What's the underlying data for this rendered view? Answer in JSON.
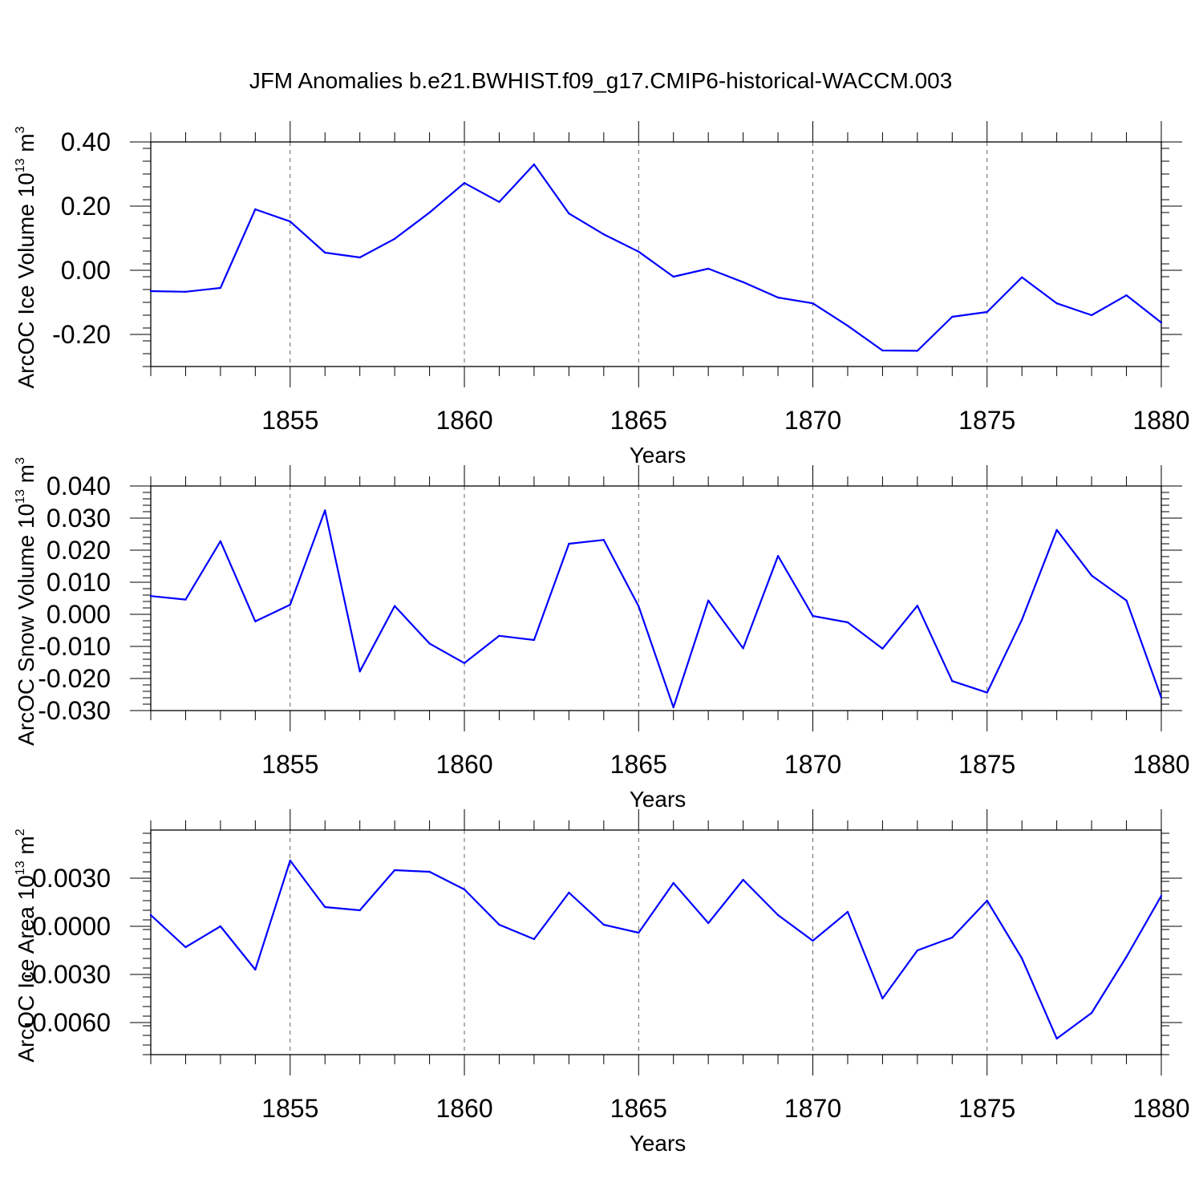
{
  "figure": {
    "title": "JFM Anomalies b.e21.BWHIST.f09_g17.CMIP6-historical-WACCM.003"
  },
  "chart_data": [
    {
      "type": "line",
      "xlabel": "Years",
      "ylabel_main": "ArcOC Ice Volume 10",
      "ylabel_exp": "13",
      "ylabel_unit": " m",
      "ylabel_unit_exp": "3",
      "xlim": [
        1851,
        1880
      ],
      "ylim": [
        -0.3,
        0.4
      ],
      "xticks": [
        1855,
        1860,
        1865,
        1870,
        1875,
        1880
      ],
      "xtick_labels": [
        "1855",
        "1860",
        "1865",
        "1870",
        "1875",
        "1880"
      ],
      "yticks": [
        -0.2,
        0.0,
        0.2,
        0.4
      ],
      "ytick_labels": [
        "-0.20",
        "0.00",
        "0.20",
        "0.40"
      ],
      "yminor": 0.04,
      "grid": "vertical dashed at major x ticks",
      "line_color": "#0000ff",
      "x": [
        1851,
        1852,
        1853,
        1854,
        1855,
        1856,
        1857,
        1858,
        1859,
        1860,
        1861,
        1862,
        1863,
        1864,
        1865,
        1866,
        1867,
        1868,
        1869,
        1870,
        1871,
        1872,
        1873,
        1874,
        1875,
        1876,
        1877,
        1878,
        1879,
        1880
      ],
      "values": [
        -0.065,
        -0.067,
        -0.055,
        0.19,
        0.152,
        0.055,
        0.04,
        0.098,
        0.18,
        0.272,
        0.213,
        0.33,
        0.177,
        0.112,
        0.058,
        -0.02,
        0.005,
        -0.037,
        -0.085,
        -0.103,
        -0.173,
        -0.25,
        -0.251,
        -0.145,
        -0.13,
        -0.022,
        -0.103,
        -0.14,
        -0.078,
        -0.163
      ]
    },
    {
      "type": "line",
      "xlabel": "Years",
      "ylabel_main": "ArcOC Snow Volume 10",
      "ylabel_exp": "13",
      "ylabel_unit": " m",
      "ylabel_unit_exp": "3",
      "xlim": [
        1851,
        1880
      ],
      "ylim": [
        -0.03,
        0.04
      ],
      "xticks": [
        1855,
        1860,
        1865,
        1870,
        1875,
        1880
      ],
      "xtick_labels": [
        "1855",
        "1860",
        "1865",
        "1870",
        "1875",
        "1880"
      ],
      "yticks": [
        -0.03,
        -0.02,
        -0.01,
        0.0,
        0.01,
        0.02,
        0.03,
        0.04
      ],
      "ytick_labels": [
        "-0.030",
        "-0.020",
        "-0.010",
        "0.000",
        "0.010",
        "0.020",
        "0.030",
        "0.040"
      ],
      "yminor": 0.002,
      "grid": "vertical dashed at major x ticks",
      "line_color": "#0000ff",
      "x": [
        1851,
        1852,
        1853,
        1854,
        1855,
        1856,
        1857,
        1858,
        1859,
        1860,
        1861,
        1862,
        1863,
        1864,
        1865,
        1866,
        1867,
        1868,
        1869,
        1870,
        1871,
        1872,
        1873,
        1874,
        1875,
        1876,
        1877,
        1878,
        1879,
        1880
      ],
      "values": [
        0.0057,
        0.0046,
        0.0228,
        -0.0022,
        0.003,
        0.0324,
        -0.0178,
        0.0026,
        -0.0091,
        -0.0152,
        -0.0067,
        -0.008,
        0.022,
        0.0232,
        0.0025,
        -0.029,
        0.0043,
        -0.0106,
        0.0182,
        -0.0005,
        -0.0025,
        -0.0107,
        0.0027,
        -0.0208,
        -0.0244,
        -0.0017,
        0.0263,
        0.0121,
        0.0043,
        -0.026
      ]
    },
    {
      "type": "line",
      "xlabel": "Years",
      "ylabel_main": "ArcOC Ice Area 10",
      "ylabel_exp": "13",
      "ylabel_unit": " m",
      "ylabel_unit_exp": "2",
      "xlim": [
        1851,
        1880
      ],
      "ylim": [
        -0.008,
        0.006
      ],
      "xticks": [
        1855,
        1860,
        1865,
        1870,
        1875,
        1880
      ],
      "xtick_labels": [
        "1855",
        "1860",
        "1865",
        "1870",
        "1875",
        "1880"
      ],
      "yticks": [
        -0.006,
        -0.003,
        0.0,
        0.003
      ],
      "ytick_labels": [
        "-0.0060",
        "-0.0030",
        "0.0000",
        "0.0030"
      ],
      "yminor": 0.0006,
      "grid": "vertical dashed at major x ticks",
      "line_color": "#0000ff",
      "x": [
        1851,
        1852,
        1853,
        1854,
        1855,
        1856,
        1857,
        1858,
        1859,
        1860,
        1861,
        1862,
        1863,
        1864,
        1865,
        1866,
        1867,
        1868,
        1869,
        1870,
        1871,
        1872,
        1873,
        1874,
        1875,
        1876,
        1877,
        1878,
        1879,
        1880
      ],
      "values": [
        0.0007,
        -0.0013,
        0.0,
        -0.0027,
        0.0041,
        0.0012,
        0.001,
        0.0035,
        0.0034,
        0.0023,
        0.0001,
        -0.0008,
        0.0021,
        0.0001,
        -0.0004,
        0.0027,
        0.0002,
        0.0029,
        0.0007,
        -0.0009,
        0.0009,
        -0.0045,
        -0.0015,
        -0.0007,
        0.0016,
        -0.002,
        -0.007,
        -0.0054,
        -0.0019,
        0.0019
      ]
    }
  ]
}
